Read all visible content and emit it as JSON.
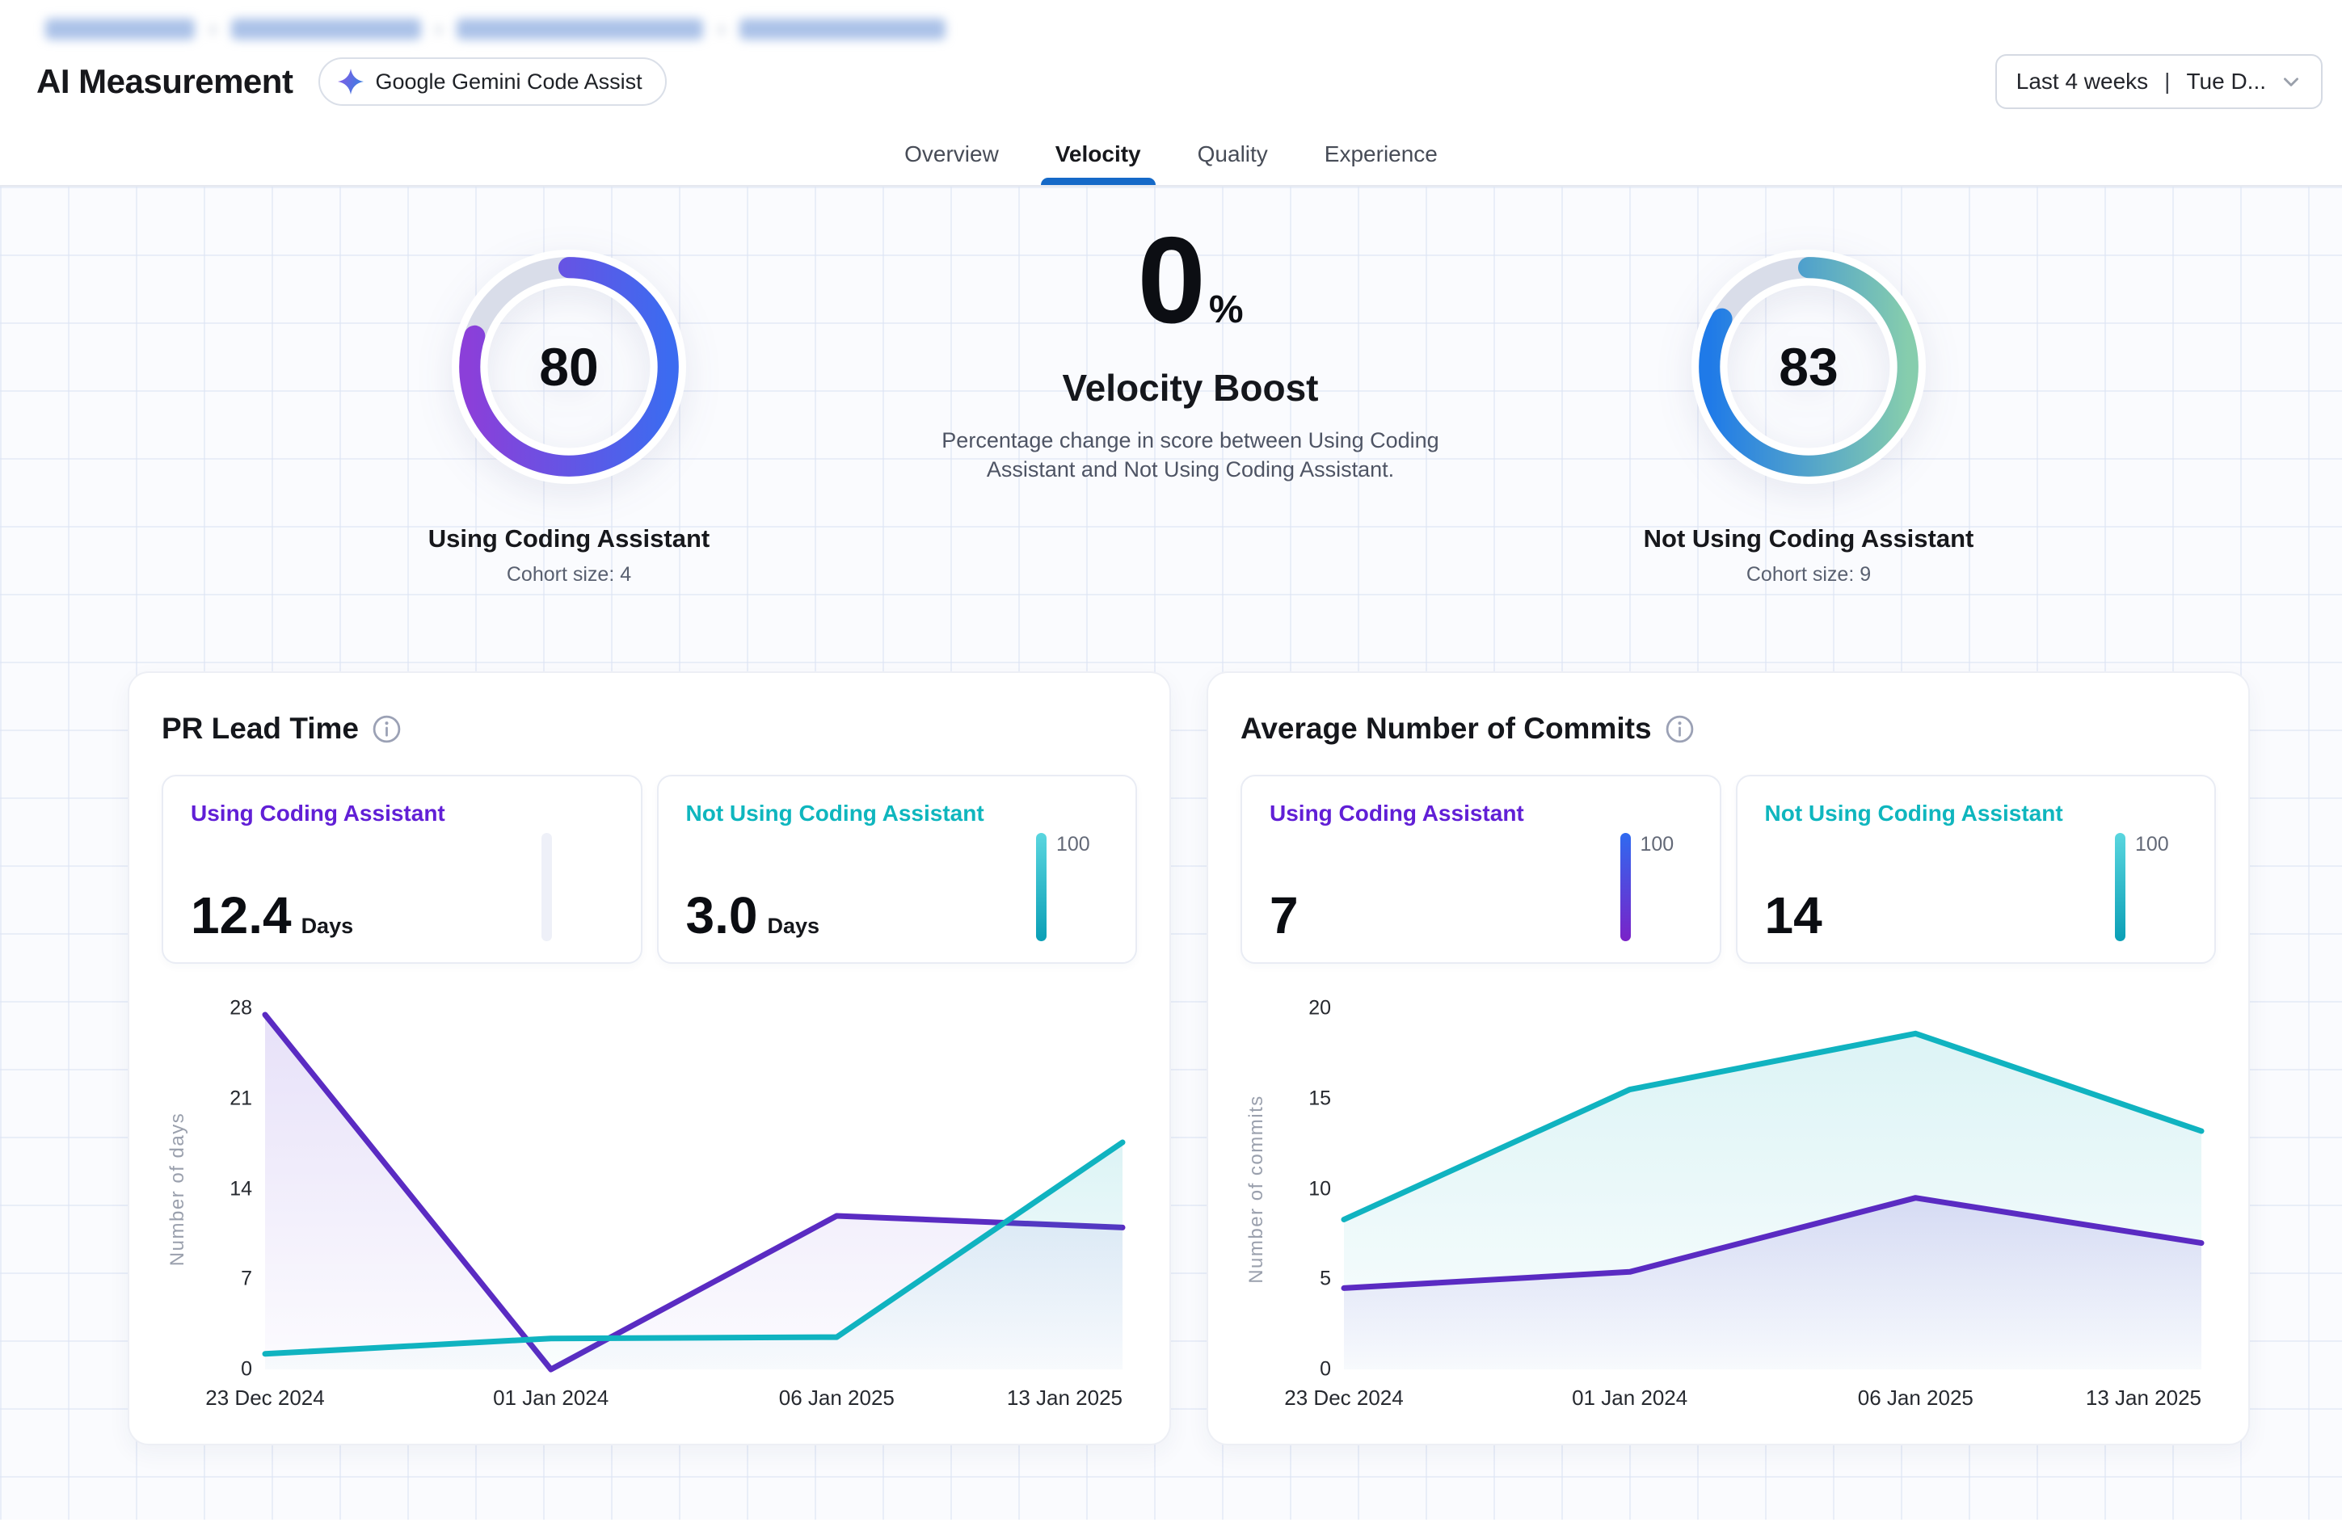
{
  "breadcrumb": {
    "redacted": true,
    "segments": 4,
    "separator": "›"
  },
  "header": {
    "title": "AI Measurement",
    "badge": "Google Gemini Code Assist",
    "date_filter": {
      "range": "Last 4 weeks",
      "separator": "|",
      "detail": "Tue D..."
    }
  },
  "tabs": [
    {
      "label": "Overview",
      "active": false
    },
    {
      "label": "Velocity",
      "active": true
    },
    {
      "label": "Quality",
      "active": false
    },
    {
      "label": "Experience",
      "active": false
    }
  ],
  "theme": {
    "tab_accent": "#1569c8",
    "gauge_track": "#d9dde9",
    "purple": "#5A2BC2",
    "teal": "#10B3C0"
  },
  "scorecards": {
    "left": {
      "value": "80",
      "pct": 80,
      "label": "Using Coding Assistant",
      "cohort": "Cohort size: 4",
      "gradient": [
        "#8B3FD9",
        "#3C6BF0"
      ]
    },
    "center": {
      "value": "0",
      "unit": "%",
      "title": "Velocity Boost",
      "description": "Percentage change in score between Using Coding Assistant and Not Using Coding Assistant."
    },
    "right": {
      "value": "83",
      "pct": 83,
      "label": "Not Using Coding Assistant",
      "cohort": "Cohort size: 9",
      "gradient": [
        "#1F7AE8",
        "#86CDAD"
      ]
    }
  },
  "chart_data": [
    {
      "id": "pr-lead-time",
      "type": "area",
      "title": "PR Lead Time",
      "x": [
        "23 Dec 2024",
        "01 Jan 2024",
        "06 Jan 2025",
        "13 Jan 2025"
      ],
      "ylabel": "Number of days",
      "yticks": [
        0,
        7,
        14,
        21,
        28
      ],
      "ylim": [
        0,
        28
      ],
      "grid": false,
      "series": [
        {
          "name": "Using Coding Assistant",
          "color": "#5A2BC2",
          "fill_top": "rgba(104,66,214,0.16)",
          "fill_bottom": "rgba(104,66,214,0.02)",
          "values": [
            27.5,
            0,
            11.9,
            11.0
          ]
        },
        {
          "name": "Not Using Coding Assistant",
          "color": "#10B3C0",
          "fill_top": "rgba(20,178,190,0.15)",
          "fill_bottom": "rgba(20,178,190,0.02)",
          "values": [
            1.2,
            2.4,
            2.5,
            17.6
          ]
        }
      ],
      "legend_cards": [
        {
          "label": "Using Coding Assistant",
          "color": "#611FD6",
          "value": "12.4",
          "unit": "Days",
          "bar": {
            "background": "#eef0f8",
            "max_label": ""
          }
        },
        {
          "label": "Not Using Coding Assistant",
          "color": "#0FB6BE",
          "value": "3.0",
          "unit": "Days",
          "bar": {
            "background": "linear-gradient(180deg,#5AD6DF,#0A9FB6)",
            "max_label": "100"
          }
        }
      ]
    },
    {
      "id": "avg-commits",
      "type": "area",
      "title": "Average Number of Commits",
      "x": [
        "23 Dec 2024",
        "01 Jan 2024",
        "06 Jan 2025",
        "13 Jan 2025"
      ],
      "ylabel": "Number of commits",
      "yticks": [
        0,
        5,
        10,
        15,
        20
      ],
      "ylim": [
        0,
        20
      ],
      "grid": false,
      "series": [
        {
          "name": "Not Using Coding Assistant",
          "color": "#10B3C0",
          "fill_top": "rgba(20,178,190,0.15)",
          "fill_bottom": "rgba(20,178,190,0.02)",
          "values": [
            8.3,
            15.5,
            18.6,
            13.2
          ]
        },
        {
          "name": "Using Coding Assistant",
          "color": "#5A2BC2",
          "fill_top": "rgba(104,66,214,0.16)",
          "fill_bottom": "rgba(104,66,214,0.02)",
          "values": [
            4.5,
            5.4,
            9.5,
            7.0
          ]
        }
      ],
      "legend_cards": [
        {
          "label": "Using Coding Assistant",
          "color": "#611FD6",
          "value": "7",
          "unit": "",
          "bar": {
            "background": "linear-gradient(180deg,#2F6AF0,#7A22C8)",
            "max_label": "100"
          }
        },
        {
          "label": "Not Using Coding Assistant",
          "color": "#0FB6BE",
          "value": "14",
          "unit": "",
          "bar": {
            "background": "linear-gradient(180deg,#5AD6DF,#0A9FB6)",
            "max_label": "100"
          }
        }
      ]
    }
  ]
}
